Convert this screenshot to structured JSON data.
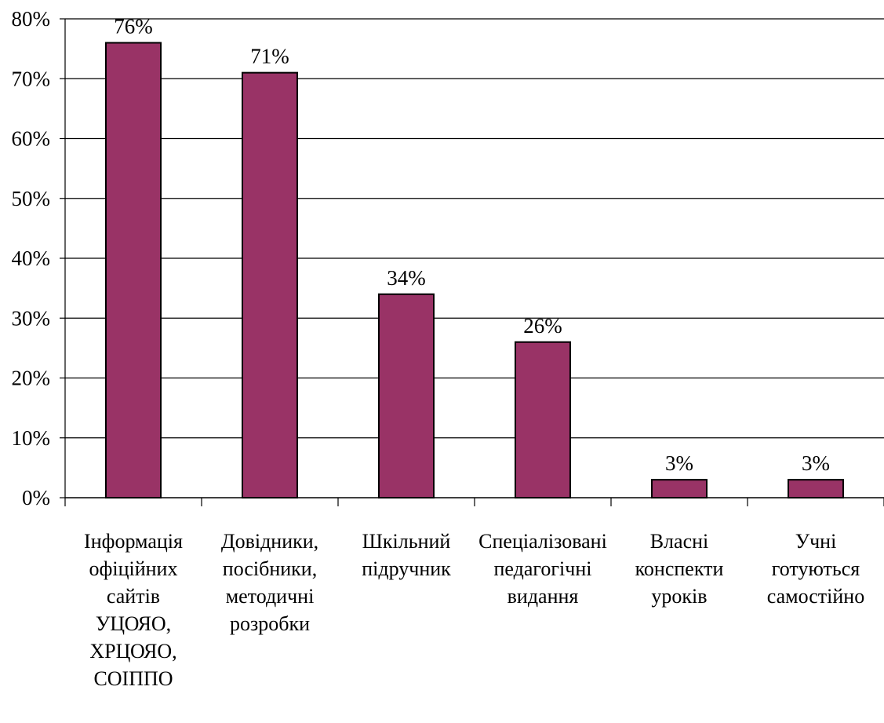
{
  "chart_data": {
    "type": "bar",
    "categories": [
      [
        "Інформація",
        "офіційних",
        "сайтів",
        "УЦОЯО,",
        "ХРЦОЯО,",
        "СОІППО"
      ],
      [
        "Довідники,",
        "посібники,",
        "методичні",
        "розробки"
      ],
      [
        "Шкільний",
        "підручник"
      ],
      [
        "Спеціалізовані",
        "педагогічні",
        "видання"
      ],
      [
        "Власні",
        "конспекти",
        "уроків"
      ],
      [
        "Учні",
        "готуються",
        "самостійно"
      ]
    ],
    "values": [
      76,
      71,
      34,
      26,
      3,
      3
    ],
    "data_labels": [
      "76%",
      "71%",
      "34%",
      "26%",
      "3%",
      "3%"
    ],
    "ylim": [
      0,
      80
    ],
    "yticks": [
      "0%",
      "10%",
      "20%",
      "30%",
      "40%",
      "50%",
      "60%",
      "70%",
      "80%"
    ],
    "grid": true,
    "bar_color": "#993366",
    "title": "",
    "xlabel": "",
    "ylabel": ""
  }
}
